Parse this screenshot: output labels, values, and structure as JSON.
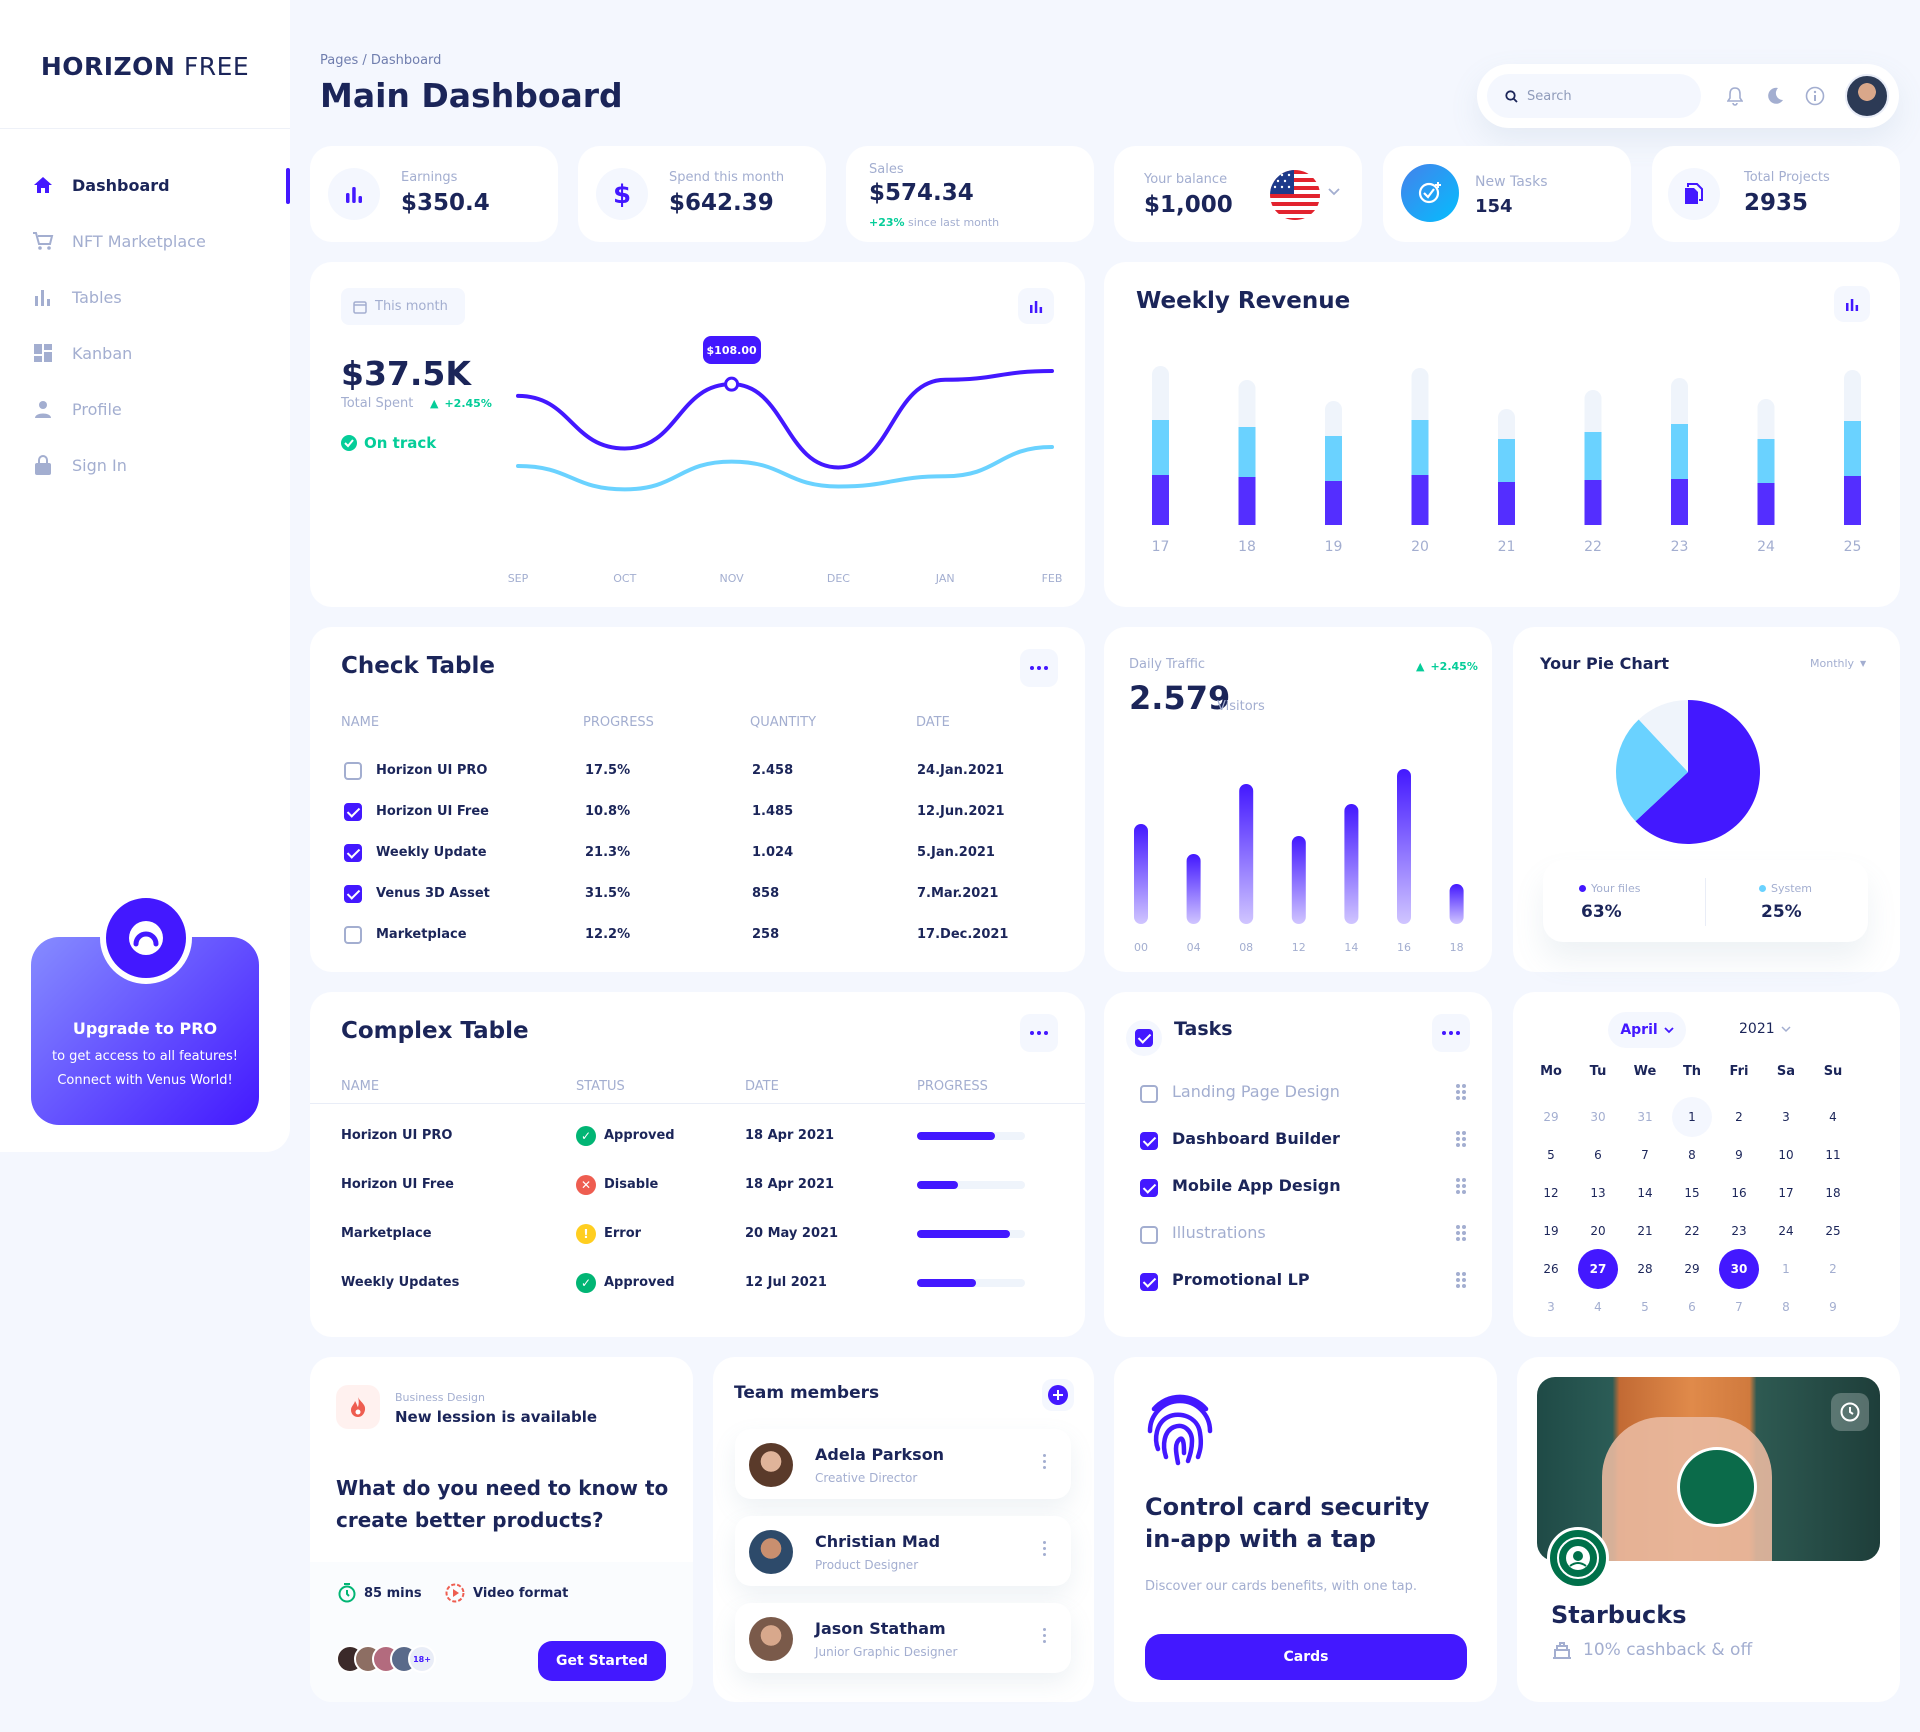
{
  "brand": {
    "bold": "HORIZON",
    "light": "FREE"
  },
  "sidebar": {
    "items": [
      {
        "label": "Dashboard",
        "icon": "home-icon"
      },
      {
        "label": "NFT Marketplace",
        "icon": "cart-icon"
      },
      {
        "label": "Tables",
        "icon": "bar-chart-icon"
      },
      {
        "label": "Kanban",
        "icon": "grid-icon"
      },
      {
        "label": "Profile",
        "icon": "person-icon"
      },
      {
        "label": "Sign In",
        "icon": "lock-icon"
      }
    ],
    "upgrade": {
      "title": "Upgrade to PRO",
      "line1": "to get access to all features!",
      "line2": "Connect with Venus World!"
    }
  },
  "header": {
    "breadcrumb": "Pages / Dashboard",
    "title": "Main Dashboard",
    "search_placeholder": "Search"
  },
  "stats": [
    {
      "label": "Earnings",
      "value": "$350.4",
      "icon": "bar-chart-icon"
    },
    {
      "label": "Spend this month",
      "value": "$642.39",
      "icon": "dollar-icon"
    },
    {
      "label": "Sales",
      "value": "$574.34",
      "change": "+23%",
      "change_suffix": "since last month"
    },
    {
      "label": "Your balance",
      "value": "$1,000",
      "icon": "us-flag-icon"
    },
    {
      "label": "New Tasks",
      "value": "154",
      "icon": "add-task-icon"
    },
    {
      "label": "Total Projects",
      "value": "2935",
      "icon": "file-copy-icon"
    }
  ],
  "total_spent": {
    "period": "This month",
    "value": "$37.5K",
    "label": "Total Spent",
    "change": "+2.45%",
    "status": "On track",
    "tooltip": "$108.00"
  },
  "chart_data": [
    {
      "type": "line",
      "title": "",
      "categories": [
        "SEP",
        "OCT",
        "NOV",
        "DEC",
        "JAN",
        "FEB"
      ],
      "series": [
        {
          "values": [
            100,
            64,
            108,
            51,
            111,
            117
          ],
          "color": "#4318FF"
        },
        {
          "values": [
            52,
            36,
            55,
            38,
            45,
            65
          ],
          "color": "#6AD2FF"
        }
      ],
      "ylim": [
        0,
        130
      ],
      "grid": false
    },
    {
      "type": "bar",
      "title": "Weekly Revenue",
      "stacked": true,
      "categories": [
        "17",
        "18",
        "19",
        "20",
        "21",
        "22",
        "23",
        "24",
        "25"
      ],
      "series": [
        {
          "values": [
            50,
            48,
            44,
            50,
            43,
            45,
            46,
            42,
            49
          ],
          "color": "#4318FF"
        },
        {
          "values": [
            55,
            50,
            45,
            55,
            43,
            48,
            55,
            44,
            55
          ],
          "color": "#6AD2FF"
        },
        {
          "values": [
            54,
            47,
            35,
            52,
            30,
            42,
            46,
            40,
            51
          ],
          "color": "#EFF4FB"
        }
      ],
      "grid": false
    },
    {
      "type": "bar",
      "title": "Daily Traffic",
      "categories": [
        "00",
        "04",
        "08",
        "12",
        "14",
        "16",
        "18"
      ],
      "values": [
        100,
        70,
        140,
        88,
        120,
        155,
        40
      ],
      "grid": false
    },
    {
      "type": "pie",
      "title": "Your Pie Chart",
      "slices": [
        {
          "label": "Your files",
          "value": 63,
          "color": "#4318FF"
        },
        {
          "label": "System",
          "value": 25,
          "color": "#6AD2FF"
        },
        {
          "label": "",
          "value": 12,
          "color": "#EFF4FB"
        }
      ]
    }
  ],
  "weekly": {
    "title": "Weekly Revenue"
  },
  "traffic": {
    "label": "Daily Traffic",
    "value": "2.579",
    "unit": "Visitors",
    "change": "+2.45%"
  },
  "pie": {
    "title": "Your Pie Chart",
    "period": "Monthly",
    "files_label": "Your files",
    "files_value": "63%",
    "system_label": "System",
    "system_value": "25%"
  },
  "check_table": {
    "title": "Check Table",
    "headers": [
      "NAME",
      "PROGRESS",
      "QUANTITY",
      "DATE"
    ],
    "rows": [
      {
        "name": "Horizon UI PRO",
        "progress": "17.5%",
        "quantity": "2.458",
        "date": "24.Jan.2021",
        "checked": false
      },
      {
        "name": "Horizon UI Free",
        "progress": "10.8%",
        "quantity": "1.485",
        "date": "12.Jun.2021",
        "checked": true
      },
      {
        "name": "Weekly Update",
        "progress": "21.3%",
        "quantity": "1.024",
        "date": "5.Jan.2021",
        "checked": true
      },
      {
        "name": "Venus 3D Asset",
        "progress": "31.5%",
        "quantity": "858",
        "date": "7.Mar.2021",
        "checked": true
      },
      {
        "name": "Marketplace",
        "progress": "12.2%",
        "quantity": "258",
        "date": "17.Dec.2021",
        "checked": false
      }
    ]
  },
  "complex_table": {
    "title": "Complex Table",
    "headers": [
      "NAME",
      "STATUS",
      "DATE",
      "PROGRESS"
    ],
    "rows": [
      {
        "name": "Horizon UI PRO",
        "status": "Approved",
        "date": "18 Apr 2021",
        "progress": 0.72,
        "status_color": "#01B574"
      },
      {
        "name": "Horizon UI Free",
        "status": "Disable",
        "date": "18 Apr 2021",
        "progress": 0.38,
        "status_color": "#EE5D50"
      },
      {
        "name": "Marketplace",
        "status": "Error",
        "date": "20 May 2021",
        "progress": 0.86,
        "status_color": "#FFB547"
      },
      {
        "name": "Weekly Updates",
        "status": "Approved",
        "date": "12 Jul 2021",
        "progress": 0.55,
        "status_color": "#01B574"
      }
    ]
  },
  "tasks": {
    "title": "Tasks",
    "items": [
      {
        "label": "Landing Page Design",
        "checked": false
      },
      {
        "label": "Dashboard Builder",
        "checked": true
      },
      {
        "label": "Mobile App Design",
        "checked": true
      },
      {
        "label": "Illustrations",
        "checked": false
      },
      {
        "label": "Promotional LP",
        "checked": true
      }
    ]
  },
  "calendar": {
    "month": "April",
    "year": "2021",
    "weekdays": [
      "Mo",
      "Tu",
      "We",
      "Th",
      "Fri",
      "Sa",
      "Su"
    ],
    "days": [
      "29",
      "30",
      "31",
      "1",
      "2",
      "3",
      "4",
      "5",
      "6",
      "7",
      "8",
      "9",
      "10",
      "11",
      "12",
      "13",
      "14",
      "15",
      "16",
      "17",
      "18",
      "19",
      "20",
      "21",
      "22",
      "23",
      "24",
      "25",
      "26",
      "27",
      "28",
      "29",
      "30",
      "1",
      "2",
      "3",
      "4",
      "5",
      "6",
      "7",
      "8",
      "9"
    ],
    "today": "1",
    "selected": [
      "27",
      "30"
    ]
  },
  "lesson": {
    "tag": "Business Design",
    "title": "New lession is available",
    "question_l1": "What do you need to know to",
    "question_l2": "create better products?",
    "duration": "85 mins",
    "format": "Video format",
    "avatar_more": "18+",
    "cta": "Get Started"
  },
  "team": {
    "title": "Team members",
    "members": [
      {
        "name": "Adela Parkson",
        "role": "Creative Director"
      },
      {
        "name": "Christian Mad",
        "role": "Product Designer"
      },
      {
        "name": "Jason Statham",
        "role": "Junior Graphic Designer"
      }
    ]
  },
  "security": {
    "title_l1": "Control card security",
    "title_l2": "in-app with a tap",
    "desc": "Discover our cards benefits, with one tap.",
    "cta": "Cards"
  },
  "starbucks": {
    "name": "Starbucks",
    "offer": "10% cashback & off"
  }
}
